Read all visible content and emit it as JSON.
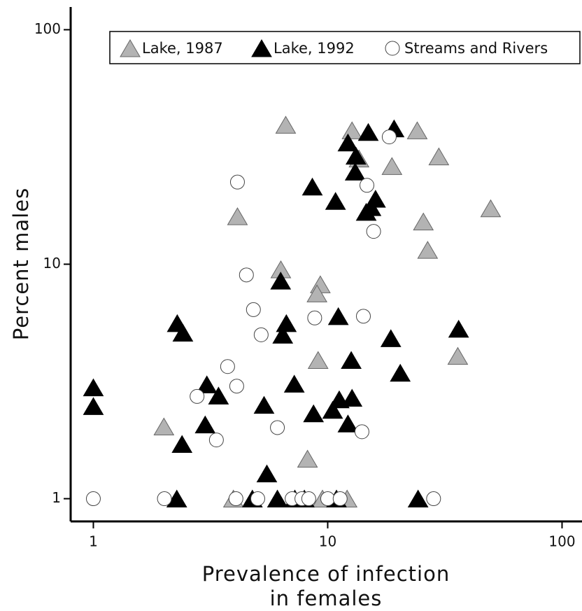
{
  "chart_data": {
    "type": "scatter",
    "y_label": "Percent males",
    "x_label_lines": [
      "Prevalence of infection",
      "in females"
    ],
    "xscale": "log",
    "yscale": "log",
    "xlim": [
      0.8,
      120
    ],
    "ylim": [
      0.8,
      125
    ],
    "xticks": [
      1,
      10,
      100
    ],
    "yticks": [
      1,
      10,
      100
    ],
    "legend": "top-right",
    "series": [
      {
        "name": "Lake, 1987",
        "marker": "triangle",
        "color": "#b3b3b3",
        "x": [
          6.62,
          12.7,
          24.1,
          13.6,
          29.8,
          18.8,
          49.6,
          4.12,
          25.6,
          26.7,
          6.31,
          9.3,
          9.0,
          9.1,
          35.9,
          2.0,
          8.2,
          3.96,
          9.5,
          12.1
        ],
        "values": [
          39.3,
          37.2,
          37.2,
          28.2,
          28.8,
          26.2,
          17.3,
          16.0,
          15.2,
          11.5,
          9.5,
          8.2,
          7.5,
          3.9,
          4.06,
          2.03,
          1.48,
          1,
          1,
          1
        ]
      },
      {
        "name": "Lake, 1992",
        "marker": "triangle",
        "color": "#000000",
        "x": [
          19.2,
          14.9,
          12.2,
          13.2,
          13.1,
          8.6,
          10.8,
          16.0,
          15.3,
          14.6,
          6.3,
          2.28,
          2.41,
          6.66,
          6.43,
          11.1,
          36.2,
          18.6,
          12.6,
          20.4,
          1.0,
          1.0,
          3.05,
          3.42,
          7.2,
          5.35,
          11.2,
          12.7,
          10.5,
          8.7,
          3.0,
          12.2,
          2.39,
          5.5,
          2.27,
          4.77,
          6.1,
          7.24,
          7.95,
          10.9,
          24.3
        ],
        "values": [
          37.9,
          36.6,
          33.0,
          29.0,
          24.8,
          21.4,
          18.6,
          19.0,
          17.5,
          16.7,
          8.5,
          5.6,
          5.1,
          5.6,
          5.0,
          6.0,
          5.3,
          4.83,
          3.9,
          3.44,
          2.98,
          2.48,
          3.07,
          2.75,
          3.09,
          2.51,
          2.65,
          2.69,
          2.39,
          2.31,
          2.07,
          2.09,
          1.71,
          1.28,
          1,
          1,
          1,
          1,
          1,
          1,
          1
        ]
      },
      {
        "name": "Streams and Rivers",
        "marker": "circle",
        "color": "#ffffff",
        "x": [
          18.3,
          4.12,
          14.7,
          15.7,
          4.5,
          4.82,
          8.8,
          14.2,
          5.2,
          3.74,
          4.09,
          2.77,
          6.1,
          3.35,
          14.0,
          1.0,
          2.01,
          4.06,
          5.03,
          7.05,
          7.76,
          8.3,
          10.0,
          11.3,
          28.3
        ],
        "values": [
          34.9,
          22.4,
          21.7,
          13.8,
          9.0,
          6.4,
          5.9,
          6.0,
          5.0,
          3.66,
          3.02,
          2.73,
          2.01,
          1.78,
          1.93,
          1,
          1,
          1,
          1,
          1,
          1,
          1,
          1,
          1,
          1
        ]
      }
    ]
  }
}
